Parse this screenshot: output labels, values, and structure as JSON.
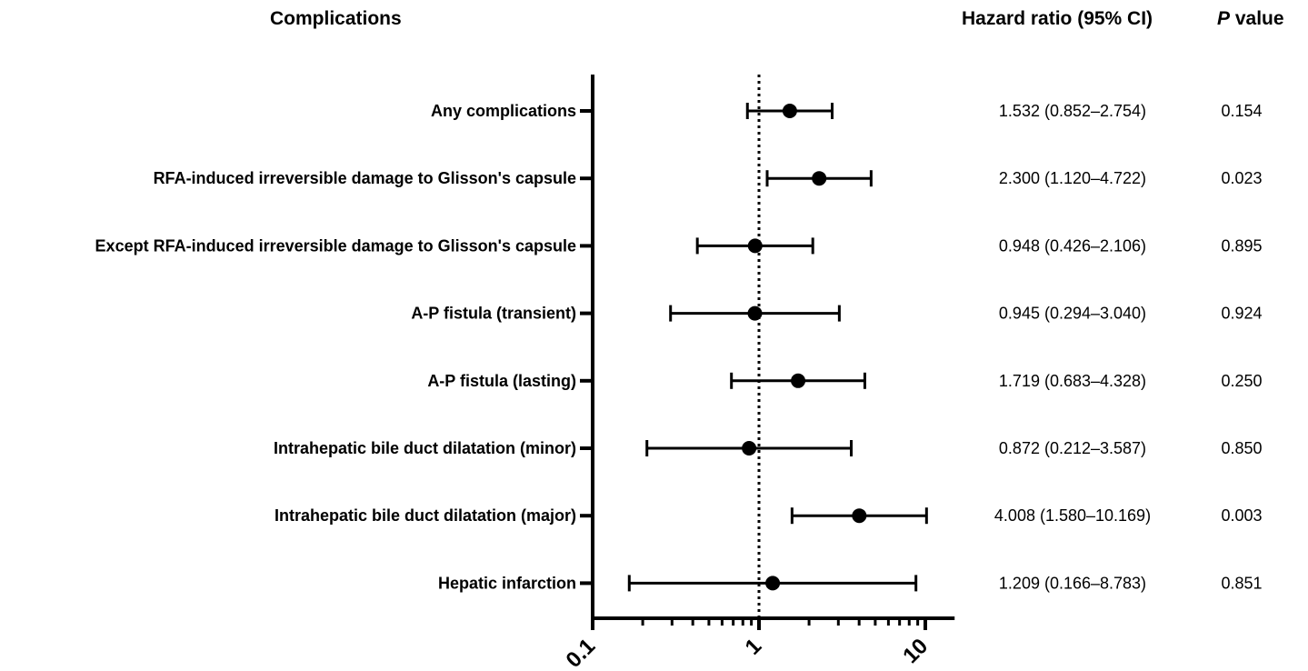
{
  "headers": {
    "complications": "Complications",
    "hazard_ratio": "Hazard ratio (95% CI)",
    "p_prefix": "P",
    "p_suffix": " value"
  },
  "chart_data": {
    "type": "forest",
    "title": "",
    "x_scale": "log",
    "xlim": [
      0.1,
      15
    ],
    "x_ticks": [
      "0.1",
      "1",
      "10"
    ],
    "reference_line": 1,
    "rows": [
      {
        "label": "Any complications",
        "hr": 1.532,
        "lo": 0.852,
        "hi": 2.754,
        "hr_text": "1.532 (0.852–2.754)",
        "p": "0.154"
      },
      {
        "label": "RFA-induced irreversible damage to Glisson's capsule",
        "hr": 2.3,
        "lo": 1.12,
        "hi": 4.722,
        "hr_text": "2.300 (1.120–4.722)",
        "p": "0.023"
      },
      {
        "label": "Except RFA-induced irreversible damage to Glisson's capsule",
        "hr": 0.948,
        "lo": 0.426,
        "hi": 2.106,
        "hr_text": "0.948 (0.426–2.106)",
        "p": "0.895"
      },
      {
        "label": "A-P fistula (transient)",
        "hr": 0.945,
        "lo": 0.294,
        "hi": 3.04,
        "hr_text": "0.945 (0.294–3.040)",
        "p": "0.924"
      },
      {
        "label": "A-P fistula (lasting)",
        "hr": 1.719,
        "lo": 0.683,
        "hi": 4.328,
        "hr_text": "1.719 (0.683–4.328)",
        "p": "0.250"
      },
      {
        "label": "Intrahepatic bile duct dilatation (minor)",
        "hr": 0.872,
        "lo": 0.212,
        "hi": 3.587,
        "hr_text": "0.872 (0.212–3.587)",
        "p": "0.850"
      },
      {
        "label": "Intrahepatic bile duct dilatation (major)",
        "hr": 4.008,
        "lo": 1.58,
        "hi": 10.169,
        "hr_text": "4.008 (1.580–10.169)",
        "p": "0.003"
      },
      {
        "label": "Hepatic infarction",
        "hr": 1.209,
        "lo": 0.166,
        "hi": 8.783,
        "hr_text": "1.209 (0.166–8.783)",
        "p": "0.851"
      }
    ]
  }
}
